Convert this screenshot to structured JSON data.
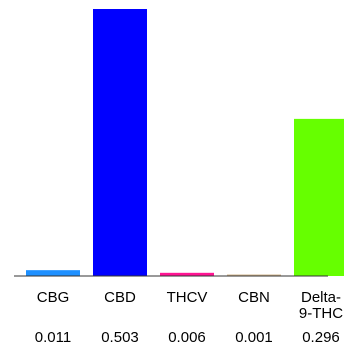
{
  "chart_data": {
    "type": "bar",
    "title": "",
    "xlabel": "",
    "ylabel": "",
    "ylim": [
      0,
      0.503
    ],
    "grid": false,
    "legend": "none",
    "categories": [
      "CBG",
      "CBD",
      "THCV",
      "CBN",
      "Delta-9-THC"
    ],
    "category_lines": [
      [
        "CBG"
      ],
      [
        "CBD"
      ],
      [
        "THCV"
      ],
      [
        "CBN"
      ],
      [
        "Delta-",
        "9-THC"
      ]
    ],
    "values": [
      0.011,
      0.503,
      0.006,
      0.001,
      0.296
    ],
    "value_labels": [
      "0.011",
      "0.503",
      "0.006",
      "0.001",
      "0.296"
    ],
    "colors": [
      "#1e90ff",
      "#0000ff",
      "#ff1493",
      "#d2b48c",
      "#66ff00"
    ]
  }
}
